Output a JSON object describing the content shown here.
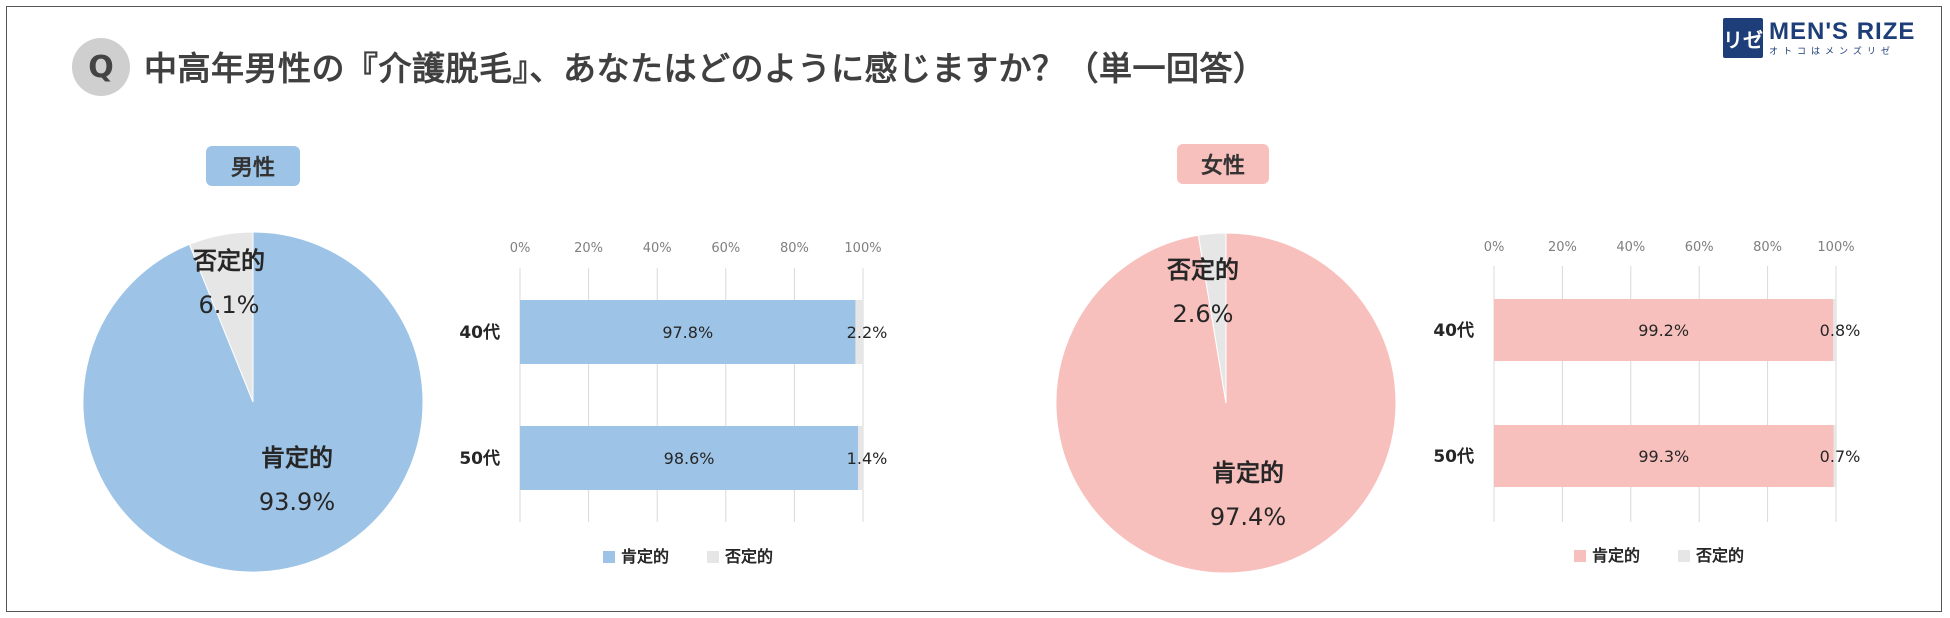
{
  "header": {
    "q_badge": "Q",
    "title": "中高年男性の『介護脱毛』、あなたはどのように感じますか？（単一回答）"
  },
  "logo": {
    "mark": "リゼ",
    "name": "MEN'S RIZE",
    "sub": "オトコはメンズリゼ"
  },
  "colors": {
    "male": "#9dc3e6",
    "female": "#f8c0bd",
    "negative": "#e7e6e6",
    "gridline": "#d9d9d9",
    "text": "#262626"
  },
  "chart_data": [
    {
      "type": "pie",
      "group_label": "男性",
      "slices": [
        {
          "label": "肯定的",
          "value": 93.9,
          "text": "93.9%"
        },
        {
          "label": "否定的",
          "value": 6.1,
          "text": "6.1%"
        }
      ]
    },
    {
      "type": "bar",
      "orientation": "horizontal",
      "stacked": true,
      "categories": [
        "40代",
        "50代"
      ],
      "x_ticks": [
        "0%",
        "20%",
        "40%",
        "60%",
        "80%",
        "100%"
      ],
      "xlim": [
        0,
        100
      ],
      "series": [
        {
          "name": "肯定的",
          "values": [
            97.8,
            98.6
          ],
          "labels": [
            "97.8%",
            "98.6%"
          ]
        },
        {
          "name": "否定的",
          "values": [
            2.2,
            1.4
          ],
          "labels": [
            "2.2%",
            "1.4%"
          ]
        }
      ],
      "legend": "bottom"
    },
    {
      "type": "pie",
      "group_label": "女性",
      "slices": [
        {
          "label": "肯定的",
          "value": 97.4,
          "text": "97.4%"
        },
        {
          "label": "否定的",
          "value": 2.6,
          "text": "2.6%"
        }
      ]
    },
    {
      "type": "bar",
      "orientation": "horizontal",
      "stacked": true,
      "categories": [
        "40代",
        "50代"
      ],
      "x_ticks": [
        "0%",
        "20%",
        "40%",
        "60%",
        "80%",
        "100%"
      ],
      "xlim": [
        0,
        100
      ],
      "series": [
        {
          "name": "肯定的",
          "values": [
            99.2,
            99.3
          ],
          "labels": [
            "99.2%",
            "99.3%"
          ]
        },
        {
          "name": "否定的",
          "values": [
            0.8,
            0.7
          ],
          "labels": [
            "0.8%",
            "0.7%"
          ]
        }
      ],
      "legend": "bottom"
    }
  ]
}
